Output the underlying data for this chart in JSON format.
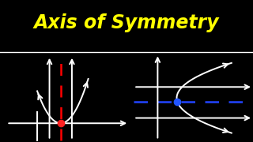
{
  "title": "Axis of Symmetry",
  "title_color": "#FFFF00",
  "bg_color": "#000000",
  "line_color": "#FFFFFF",
  "red_dashed_color": "#FF0000",
  "blue_dashed_color": "#2244FF",
  "red_dot_color": "#FF2222",
  "blue_dot_color": "#2255FF",
  "divider_color": "#FFFFFF",
  "title_fontsize": 17,
  "figsize": [
    3.2,
    1.8
  ],
  "dpi": 100
}
